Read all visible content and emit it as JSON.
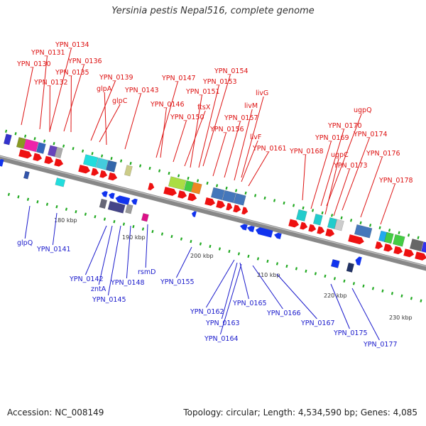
{
  "title": "Yersinia pestis Nepal516, complete genome",
  "footer": {
    "accession": "Accession: NC_008149",
    "topology": "Topology: circular; Length: 4,534,590 bp; Genes: 4,085"
  },
  "colors": {
    "forward_label": "#dd1111",
    "reverse_label": "#1a1acc",
    "backbone": "#888888",
    "tick": "#22aa22",
    "scale_text": "#333333"
  },
  "scale_labels": [
    "180 kbp",
    "190 kbp",
    "200 kbp",
    "210 kbp",
    "220 kbp",
    "230 kbp"
  ],
  "forward_genes": [
    "YPN_0134",
    "YPN_0131",
    "YPN_0136",
    "YPN_0130",
    "YPN_0135",
    "YPN_0132",
    "YPN_0139",
    "glpA",
    "YPN_0143",
    "glpC",
    "YPN_0147",
    "YPN_0154",
    "YPN_0153",
    "YPN_0151",
    "YPN_0146",
    "ftsX",
    "YPN_0150",
    "livG",
    "livM",
    "YPN_0157",
    "YPN_0156",
    "livF",
    "YPN_0161",
    "ugpQ",
    "YPN_0170",
    "YPN_0169",
    "YPN_0174",
    "YPN_0168",
    "ugpC",
    "YPN_0176",
    "YPN_0173",
    "YPN_0178"
  ],
  "reverse_genes": [
    "glpQ",
    "YPN_0141",
    "YPN_0142",
    "rsmD",
    "zntA",
    "YPN_0148",
    "YPN_0155",
    "YPN_0145",
    "YPN_0162",
    "YPN_0165",
    "YPN_0166",
    "YPN_0163",
    "YPN_0167",
    "YPN_0175",
    "YPN_0164",
    "YPN_0177"
  ]
}
